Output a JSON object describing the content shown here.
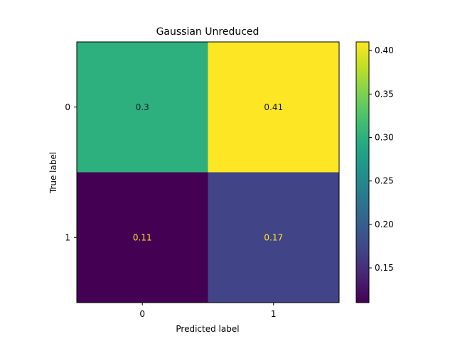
{
  "chart_data": {
    "type": "heatmap",
    "title": "Gaussian Unreduced",
    "xlabel": "Predicted label",
    "ylabel": "True label",
    "x_categories": [
      "0",
      "1"
    ],
    "y_categories": [
      "0",
      "1"
    ],
    "values": [
      [
        0.3,
        0.41
      ],
      [
        0.11,
        0.17
      ]
    ],
    "cell_labels": [
      [
        "0.3",
        "0.41"
      ],
      [
        "0.11",
        "0.17"
      ]
    ],
    "colormap": "viridis",
    "colorbar": {
      "range": [
        0.11,
        0.41
      ],
      "ticks": [
        0.15,
        0.2,
        0.25,
        0.3,
        0.35,
        0.4
      ],
      "tick_labels": [
        "0.15",
        "0.20",
        "0.25",
        "0.30",
        "0.35",
        "0.40"
      ]
    },
    "grid": false
  }
}
